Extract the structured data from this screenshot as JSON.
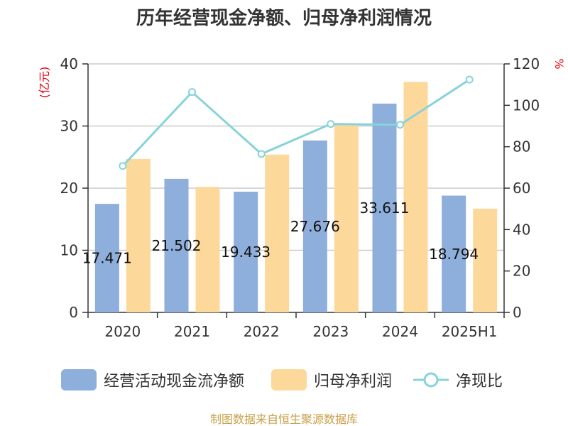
{
  "chart_data": {
    "type": "bar",
    "title": "历年经营现金净额、归母净利润情况",
    "categories": [
      "2020",
      "2021",
      "2022",
      "2023",
      "2024",
      "2025H1"
    ],
    "series": [
      {
        "name": "经营活动现金流净额",
        "type": "bar",
        "axis": "left",
        "color": "#8eaedb",
        "values": [
          17.471,
          21.502,
          19.433,
          27.676,
          33.611,
          18.794
        ],
        "labels": [
          "17.471",
          "21.502",
          "19.433",
          "27.676",
          "33.611",
          "18.794"
        ]
      },
      {
        "name": "归母净利润",
        "type": "bar",
        "axis": "left",
        "color": "#fdd89b",
        "values": [
          24.7,
          20.2,
          25.4,
          30.4,
          37.1,
          16.7
        ]
      },
      {
        "name": "净现比",
        "type": "line",
        "axis": "right",
        "color": "#88d3da",
        "values": [
          70.7,
          106.4,
          76.5,
          91.0,
          90.6,
          112.4
        ]
      }
    ],
    "y_left": {
      "label": "(亿元)",
      "ylim": [
        0,
        40
      ],
      "ticks": [
        "0",
        "10",
        "20",
        "30",
        "40"
      ]
    },
    "y_right": {
      "label": "%",
      "ylim": [
        0,
        120
      ],
      "ticks": [
        "0",
        "20",
        "40",
        "60",
        "80",
        "100",
        "120"
      ]
    },
    "grid": true,
    "legend": "bottom",
    "source": "制图数据来自恒生聚源数据库"
  }
}
